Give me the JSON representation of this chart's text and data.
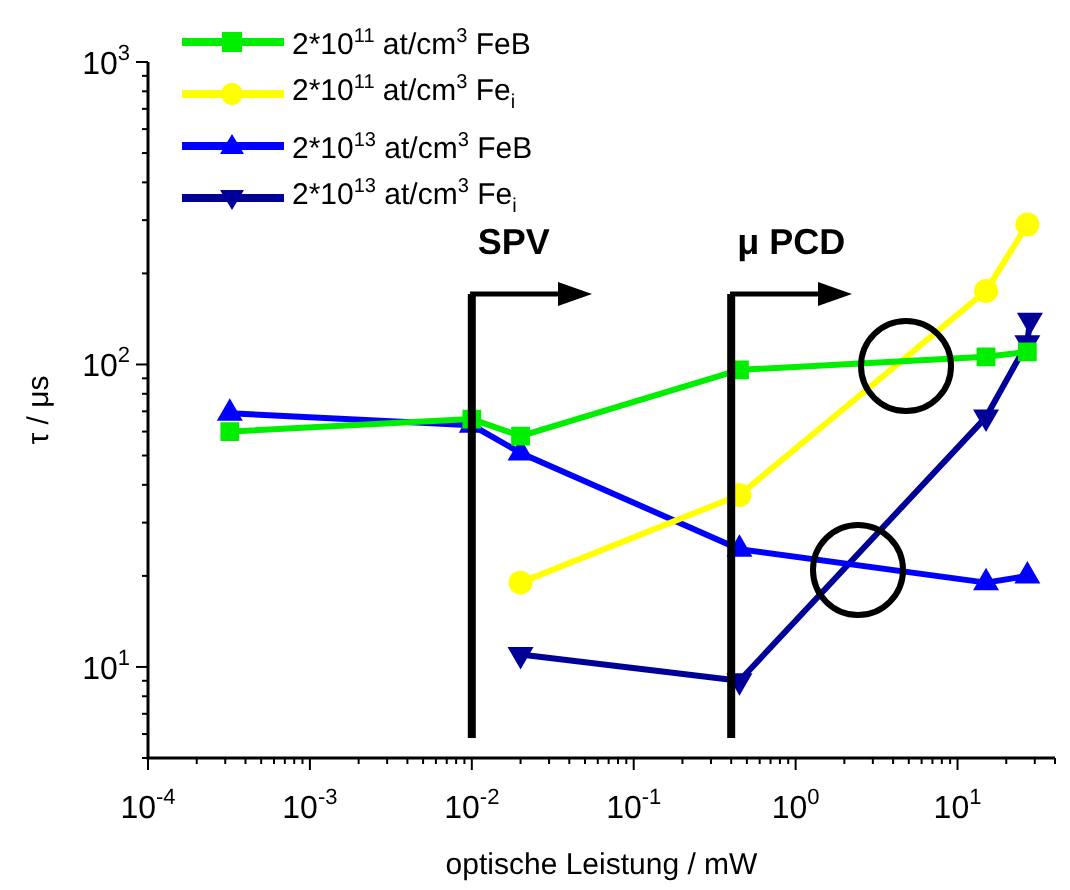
{
  "chart_data": {
    "type": "line",
    "xlabel": "optische Leistung / mW",
    "ylabel": "τ / μs",
    "log": "xy",
    "grid": false,
    "legend": "top left",
    "line_style": "solid",
    "xlim": [
      0.0001,
      40
    ],
    "ylim": [
      5,
      1000
    ],
    "xticks": [
      {
        "value": 0.0001,
        "label": "10$^{-4}$"
      },
      {
        "value": 0.001,
        "label": "10$^{-3}$"
      },
      {
        "value": 0.01,
        "label": "10$^{-2}$"
      },
      {
        "value": 0.1,
        "label": "10$^{-1}$"
      },
      {
        "value": 1,
        "label": "10$^{0}$"
      },
      {
        "value": 10,
        "label": "10$^{1}$"
      }
    ],
    "yticks": [
      {
        "value": 10,
        "label": "10$^{1}$"
      },
      {
        "value": 100,
        "label": "10$^{2}$"
      },
      {
        "value": 1000,
        "label": "10$^{3}$"
      }
    ],
    "series": [
      {
        "name": "2*10$^{11}$ at/cm$^{3}$ FeB",
        "color": "#00ee00",
        "marker": "square",
        "x": [
          0.00032,
          0.01,
          0.02,
          0.45,
          15,
          27
        ],
        "values": [
          60,
          66,
          58,
          96,
          106,
          110
        ]
      },
      {
        "name": "2*10$^{11}$ at/cm$^{3}$ Fe$_{i}$",
        "color": "#ffff00",
        "marker": "circle",
        "x": [
          0.02,
          0.45,
          15,
          27
        ],
        "values": [
          19,
          37,
          175,
          290
        ]
      },
      {
        "name": "2*10$^{13}$ at/cm$^{3}$ FeB",
        "color": "#0000ff",
        "marker": "triangle",
        "x": [
          0.00032,
          0.01,
          0.02,
          0.45,
          15,
          27
        ],
        "values": [
          69,
          63,
          51,
          24.5,
          19,
          20
        ]
      },
      {
        "name": "2*10$^{13}$ at/cm$^{3}$ Fe$_{i}$",
        "color": "#000099",
        "marker": "triangle-down",
        "x": [
          0.02,
          0.45,
          15,
          27,
          28
        ],
        "values": [
          11,
          9,
          67,
          118,
          140
        ]
      }
    ],
    "ref_lines": [
      {
        "axis": "x",
        "value": 0.01,
        "label": "SPV",
        "color": "#000000"
      },
      {
        "axis": "x",
        "value": 0.4,
        "label": "μ PCD",
        "color": "#000000"
      }
    ]
  }
}
